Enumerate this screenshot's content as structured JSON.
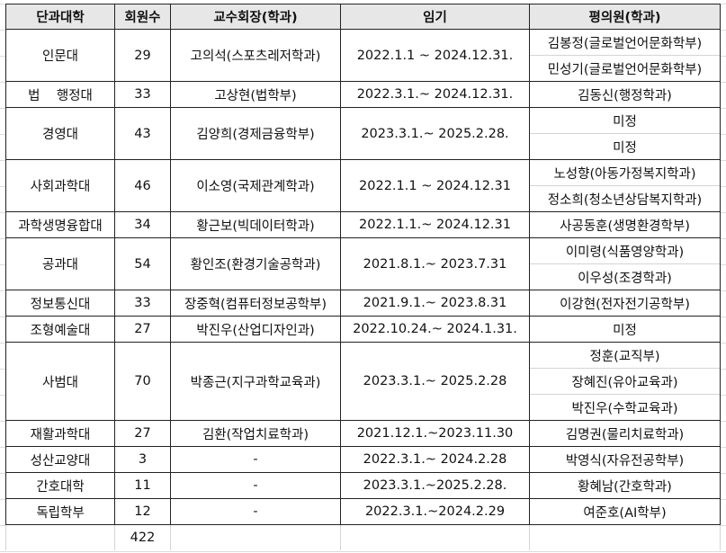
{
  "headers": [
    "단과대학",
    "회원수",
    "교수회장(학과)",
    "임기",
    "평의원(학과)"
  ],
  "rows": [
    {
      "college": "인문대",
      "members": "29",
      "president": "고의석(스포츠레저학과)",
      "term": "2022.1.1 ~ 2024.12.31.",
      "councilors": [
        "김봉정(글로벌언어문화학부)",
        "민성기(글로벌언어문화학부)"
      ]
    },
    {
      "college": "법    행정대",
      "members": "33",
      "president": "고상현(법학부)",
      "term": "2022.3.1.~ 2024.12.31.",
      "councilors": [
        "김동신(행정학과)"
      ]
    },
    {
      "college": "경영대",
      "members": "43",
      "president": "김양희(경제금융학부)",
      "term": "2023.3.1.~ 2025.2.28.",
      "councilors": [
        "미정",
        "미정"
      ]
    },
    {
      "college": "사회과학대",
      "members": "46",
      "president": "이소영(국제관계학과)",
      "term": "2022.1.1 ~ 2024.12.31",
      "councilors": [
        "노성향(아동가정복지학과)",
        "정소희(청소년상담복지학과)"
      ]
    },
    {
      "college": "과학생명융합대",
      "members": "34",
      "president": "황근보(빅데이터학과)",
      "term": "2022.1.1.~ 2024.12.31",
      "councilors": [
        "사공동훈(생명환경학부)"
      ]
    },
    {
      "college": "공과대",
      "members": "54",
      "president": "황인조(환경기술공학과)",
      "term": "2021.8.1.~ 2023.7.31",
      "councilors": [
        "이미령(식품영양학과)",
        "이우성(조경학과)"
      ]
    },
    {
      "college": "정보통신대",
      "members": "33",
      "president": "장중혁(컴퓨터정보공학부)",
      "term": "2021.9.1.~ 2023.8.31",
      "councilors": [
        "이강현(전자전기공학부)"
      ]
    },
    {
      "college": "조형예술대",
      "members": "27",
      "president": "박진우(산업디자인과)",
      "term": "2022.10.24.~ 2024.1.31.",
      "councilors": [
        "미정"
      ]
    },
    {
      "college": "사범대",
      "members": "70",
      "president": "박종근(지구과학교육과)",
      "term": "2023.3.1.~ 2025.2.28",
      "councilors": [
        "정훈(교직부)",
        "장혜진(유아교육과)",
        "박진우(수학교육과)"
      ]
    },
    {
      "college": "재활과학대",
      "members": "27",
      "president": "김환(작업치료학과)",
      "term": "2021.12.1.~2023.11.30",
      "councilors": [
        "김명권(물리치료학과)"
      ]
    },
    {
      "college": "성산교양대",
      "members": "3",
      "president": "-",
      "term": "2022.3.1.~ 2024.2.28",
      "councilors": [
        "박영식(자유전공학부)"
      ]
    },
    {
      "college": "간호대학",
      "members": "11",
      "president": "-",
      "term": "2023.3.1.~2025.2.28.",
      "councilors": [
        "황혜남(간호학과)"
      ]
    },
    {
      "college": "독립학부",
      "members": "12",
      "president": "-",
      "term": "2022.3.1.~2024.2.29",
      "councilors": [
        "여준호(AI학부)"
      ]
    }
  ],
  "total_members": "422"
}
